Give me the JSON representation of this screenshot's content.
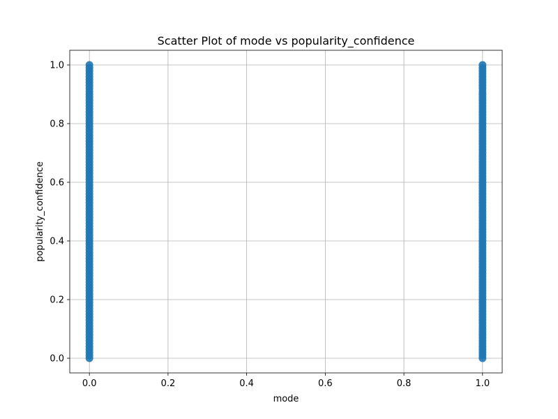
{
  "chart_data": {
    "type": "scatter",
    "title": "Scatter Plot of mode vs popularity_confidence",
    "xlabel": "mode",
    "ylabel": "popularity_confidence",
    "xlim": [
      -0.05,
      1.05
    ],
    "ylim": [
      -0.05,
      1.05
    ],
    "xticks": [
      0.0,
      0.2,
      0.4,
      0.6,
      0.8,
      1.0
    ],
    "xtick_labels": [
      "0.0",
      "0.2",
      "0.4",
      "0.6",
      "0.8",
      "1.0"
    ],
    "yticks": [
      0.0,
      0.2,
      0.4,
      0.6,
      0.8,
      1.0
    ],
    "ytick_labels": [
      "0.0",
      "0.2",
      "0.4",
      "0.6",
      "0.8",
      "1.0"
    ],
    "grid": true,
    "colors": {
      "marker": "#1f77b4"
    },
    "series": [
      {
        "x": [
          0,
          0,
          0,
          0,
          0,
          0,
          0,
          0,
          0,
          0,
          0,
          0,
          0,
          0,
          0,
          0,
          0,
          0,
          0,
          0,
          0,
          0,
          0,
          0,
          0,
          0,
          0,
          0,
          0,
          0,
          0,
          0,
          0,
          0,
          0,
          0,
          0,
          0,
          0,
          0,
          0,
          0,
          0,
          0,
          0,
          0,
          0,
          0,
          0,
          0,
          0,
          0,
          0,
          0,
          0,
          0,
          0,
          0,
          0,
          0,
          0,
          0,
          0,
          0,
          0,
          0,
          0,
          0,
          0,
          0,
          0,
          0,
          0,
          0,
          0,
          0,
          0,
          0,
          0,
          0,
          0,
          0,
          0,
          0,
          0,
          0,
          0,
          0,
          0,
          0,
          0,
          0,
          0,
          0,
          0,
          0,
          0,
          0,
          0,
          0,
          0,
          1,
          1,
          1,
          1,
          1,
          1,
          1,
          1,
          1,
          1,
          1,
          1,
          1,
          1,
          1,
          1,
          1,
          1,
          1,
          1,
          1,
          1,
          1,
          1,
          1,
          1,
          1,
          1,
          1,
          1,
          1,
          1,
          1,
          1,
          1,
          1,
          1,
          1,
          1,
          1,
          1,
          1,
          1,
          1,
          1,
          1,
          1,
          1,
          1,
          1,
          1,
          1,
          1,
          1,
          1,
          1,
          1,
          1,
          1,
          1,
          1,
          1,
          1,
          1,
          1,
          1,
          1,
          1,
          1,
          1,
          1,
          1,
          1,
          1,
          1,
          1,
          1,
          1,
          1,
          1,
          1,
          1,
          1,
          1,
          1,
          1,
          1,
          1,
          1,
          1,
          1,
          1,
          1,
          1,
          1,
          1,
          1,
          1,
          1,
          1,
          1
        ],
        "y": [
          0.0,
          0.01,
          0.02,
          0.03,
          0.04,
          0.05,
          0.06,
          0.07,
          0.08,
          0.09,
          0.1,
          0.11,
          0.12,
          0.13,
          0.14,
          0.15,
          0.16,
          0.17,
          0.18,
          0.19,
          0.2,
          0.21,
          0.22,
          0.23,
          0.24,
          0.25,
          0.26,
          0.27,
          0.28,
          0.29,
          0.3,
          0.31,
          0.32,
          0.33,
          0.34,
          0.35,
          0.36,
          0.37,
          0.38,
          0.39,
          0.4,
          0.41,
          0.42,
          0.43,
          0.44,
          0.45,
          0.46,
          0.47,
          0.48,
          0.49,
          0.5,
          0.51,
          0.52,
          0.53,
          0.54,
          0.55,
          0.56,
          0.57,
          0.58,
          0.59,
          0.6,
          0.61,
          0.62,
          0.63,
          0.64,
          0.65,
          0.66,
          0.67,
          0.68,
          0.69,
          0.7,
          0.71,
          0.72,
          0.73,
          0.74,
          0.75,
          0.76,
          0.77,
          0.78,
          0.79,
          0.8,
          0.81,
          0.82,
          0.83,
          0.84,
          0.85,
          0.86,
          0.87,
          0.88,
          0.89,
          0.9,
          0.91,
          0.92,
          0.93,
          0.94,
          0.95,
          0.96,
          0.97,
          0.98,
          0.99,
          1.0,
          0.0,
          0.01,
          0.02,
          0.03,
          0.04,
          0.05,
          0.06,
          0.07,
          0.08,
          0.09,
          0.1,
          0.11,
          0.12,
          0.13,
          0.14,
          0.15,
          0.16,
          0.17,
          0.18,
          0.19,
          0.2,
          0.21,
          0.22,
          0.23,
          0.24,
          0.25,
          0.26,
          0.27,
          0.28,
          0.29,
          0.3,
          0.31,
          0.32,
          0.33,
          0.34,
          0.35,
          0.36,
          0.37,
          0.38,
          0.39,
          0.4,
          0.41,
          0.42,
          0.43,
          0.44,
          0.45,
          0.46,
          0.47,
          0.48,
          0.49,
          0.5,
          0.51,
          0.52,
          0.53,
          0.54,
          0.55,
          0.56,
          0.57,
          0.58,
          0.59,
          0.6,
          0.61,
          0.62,
          0.63,
          0.64,
          0.65,
          0.66,
          0.67,
          0.68,
          0.69,
          0.7,
          0.71,
          0.72,
          0.73,
          0.74,
          0.75,
          0.76,
          0.77,
          0.78,
          0.79,
          0.8,
          0.81,
          0.82,
          0.83,
          0.84,
          0.85,
          0.86,
          0.87,
          0.88,
          0.89,
          0.9,
          0.91,
          0.92,
          0.93,
          0.94,
          0.95,
          0.96,
          0.97,
          0.98,
          0.99,
          1.0
        ]
      }
    ]
  }
}
